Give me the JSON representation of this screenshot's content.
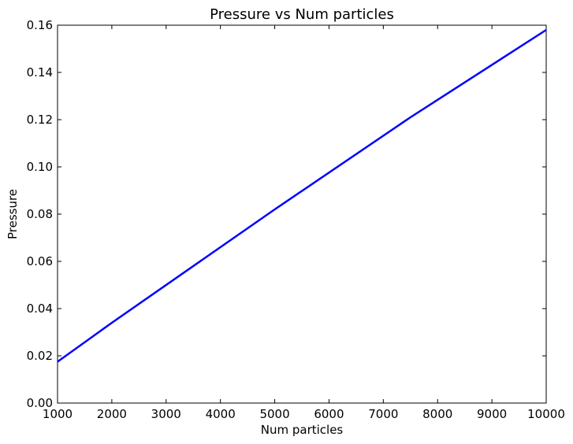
{
  "chart_data": {
    "type": "line",
    "title": "Pressure vs Num particles",
    "xlabel": "Num particles",
    "ylabel": "Pressure",
    "xlim": [
      1000,
      10000
    ],
    "ylim": [
      0.0,
      0.16
    ],
    "x_ticks": [
      1000,
      2000,
      3000,
      4000,
      5000,
      6000,
      7000,
      8000,
      9000,
      10000
    ],
    "x_tick_labels": [
      "1000",
      "2000",
      "3000",
      "4000",
      "5000",
      "6000",
      "7000",
      "8000",
      "9000",
      "10000"
    ],
    "y_ticks": [
      0.0,
      0.02,
      0.04,
      0.06,
      0.08,
      0.1,
      0.12,
      0.14,
      0.16
    ],
    "y_tick_labels": [
      "0.00",
      "0.02",
      "0.04",
      "0.06",
      "0.08",
      "0.10",
      "0.12",
      "0.14",
      "0.16"
    ],
    "grid": false,
    "series": [
      {
        "color": "#0000ff",
        "x": [
          1000,
          2000,
          5000,
          7500,
          10000
        ],
        "y": [
          0.0175,
          0.034,
          0.082,
          0.121,
          0.158
        ]
      }
    ]
  }
}
